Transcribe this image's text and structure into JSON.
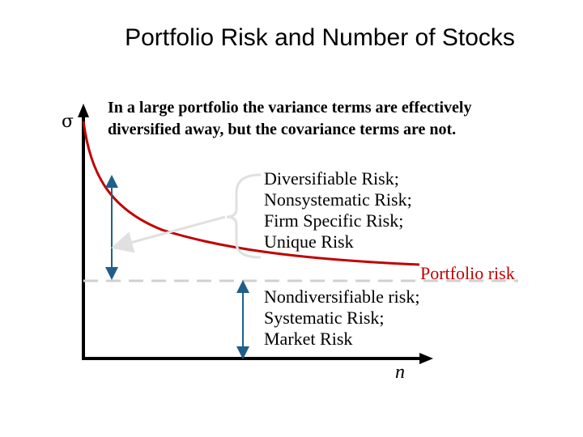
{
  "title": "Portfolio Risk and Number of Stocks",
  "caption": {
    "line1": "In a large portfolio the variance terms are effectively",
    "line2": "diversified away, but the covariance terms are not."
  },
  "axes": {
    "y_symbol": "σ",
    "x_symbol": "n"
  },
  "diversifiable_risk": [
    "Diversifiable Risk;",
    "Nonsystematic Risk;",
    "Firm Specific Risk;",
    "Unique Risk"
  ],
  "portfolio_risk_label": "Portfolio risk",
  "nondiversifiable_risk": [
    "Nondiversifiable risk;",
    "Systematic Risk;",
    "Market Risk"
  ],
  "colors": {
    "curve": "#c00000",
    "arrow": "#1f5f8b",
    "dashed": "#d0d0d0",
    "brace": "#e0e0e0",
    "axis": "#000000"
  }
}
